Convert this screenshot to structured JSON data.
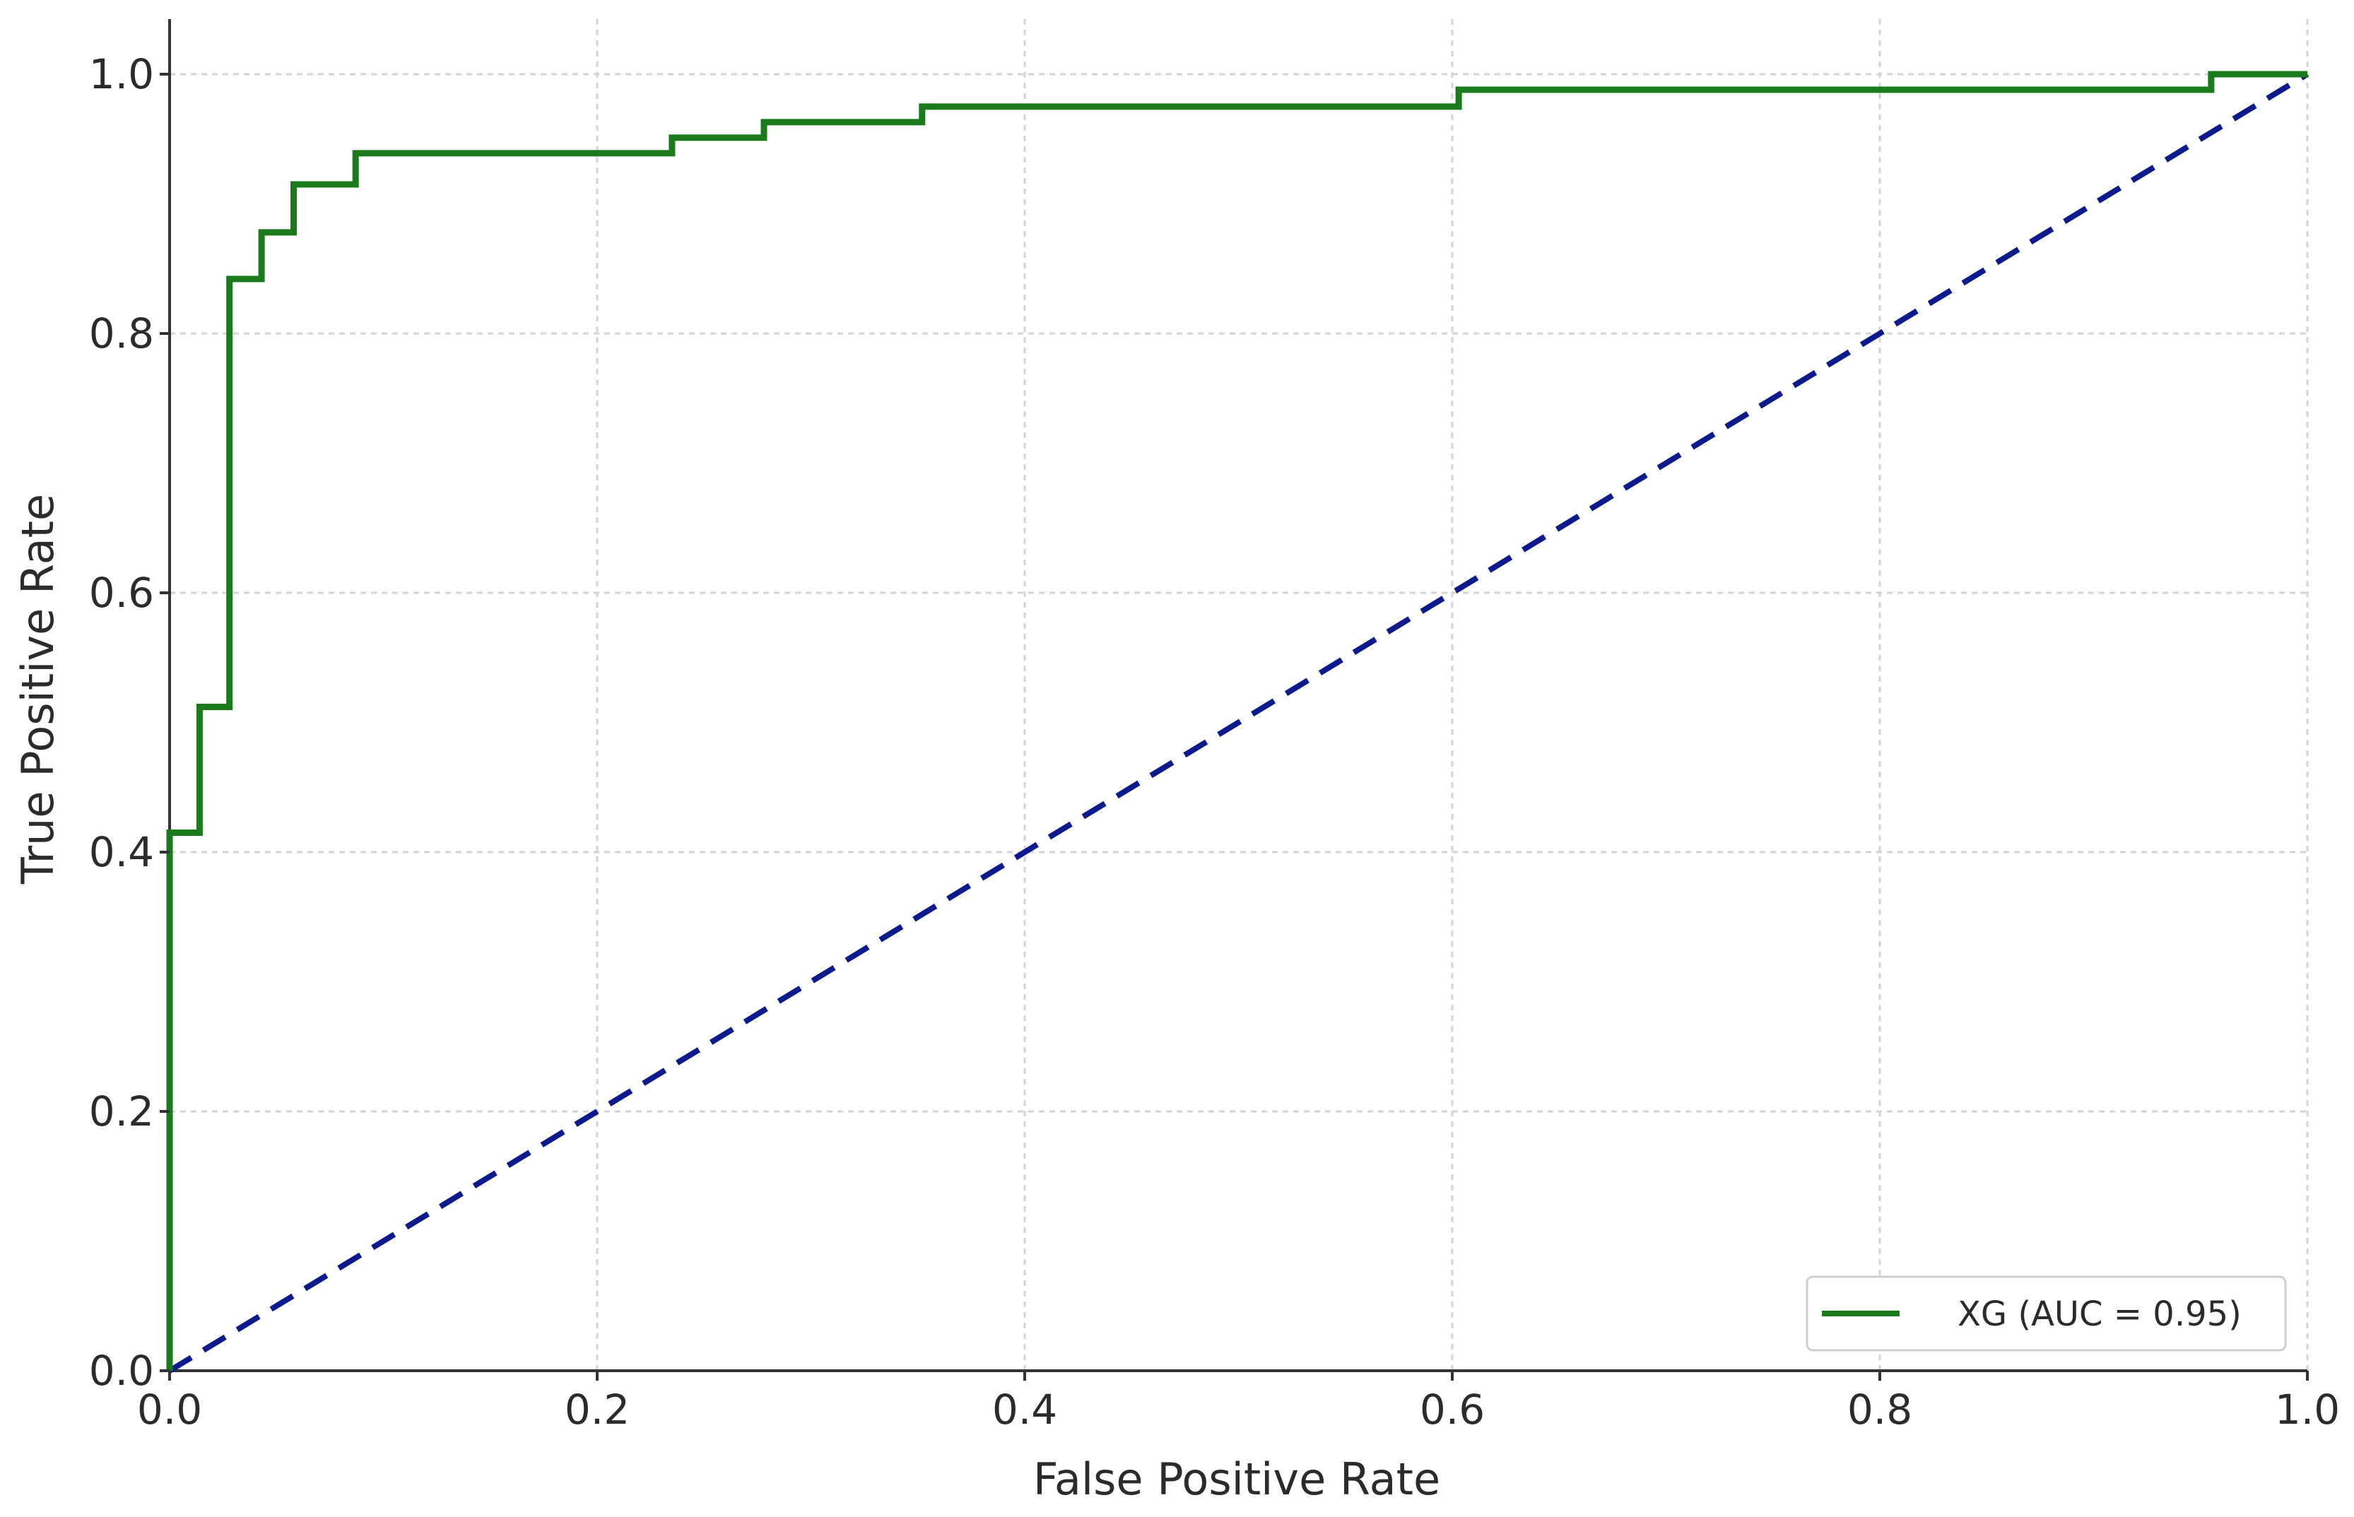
{
  "chart_data": {
    "type": "line",
    "title": "",
    "xlabel": "False Positive Rate",
    "ylabel": "True Positive Rate",
    "xlim": [
      0.0,
      1.0
    ],
    "ylim": [
      0.0,
      1.0
    ],
    "x_ticks": [
      "0.0",
      "0.2",
      "0.4",
      "0.6",
      "0.8",
      "1.0"
    ],
    "y_ticks": [
      "0.0",
      "0.2",
      "0.4",
      "0.6",
      "0.8",
      "1.0"
    ],
    "grid": true,
    "legend_position": "lower-right",
    "series": [
      {
        "name": "XG (AUC = 0.95)",
        "color": "#1b7a1b",
        "style": "solid",
        "step": true,
        "points": [
          [
            0.0,
            0.0
          ],
          [
            0.0,
            0.415
          ],
          [
            0.014,
            0.415
          ],
          [
            0.014,
            0.512
          ],
          [
            0.028,
            0.512
          ],
          [
            0.028,
            0.842
          ],
          [
            0.043,
            0.842
          ],
          [
            0.043,
            0.878
          ],
          [
            0.058,
            0.878
          ],
          [
            0.058,
            0.915
          ],
          [
            0.087,
            0.915
          ],
          [
            0.087,
            0.939
          ],
          [
            0.235,
            0.939
          ],
          [
            0.235,
            0.951
          ],
          [
            0.278,
            0.951
          ],
          [
            0.278,
            0.963
          ],
          [
            0.352,
            0.963
          ],
          [
            0.352,
            0.975
          ],
          [
            0.603,
            0.975
          ],
          [
            0.603,
            0.988
          ],
          [
            0.955,
            0.988
          ],
          [
            0.955,
            1.0
          ],
          [
            1.0,
            1.0
          ]
        ]
      },
      {
        "name": "",
        "color": "#0b1a8c",
        "style": "dashed",
        "step": false,
        "points": [
          [
            0.0,
            0.0
          ],
          [
            1.0,
            1.0
          ]
        ]
      }
    ]
  }
}
